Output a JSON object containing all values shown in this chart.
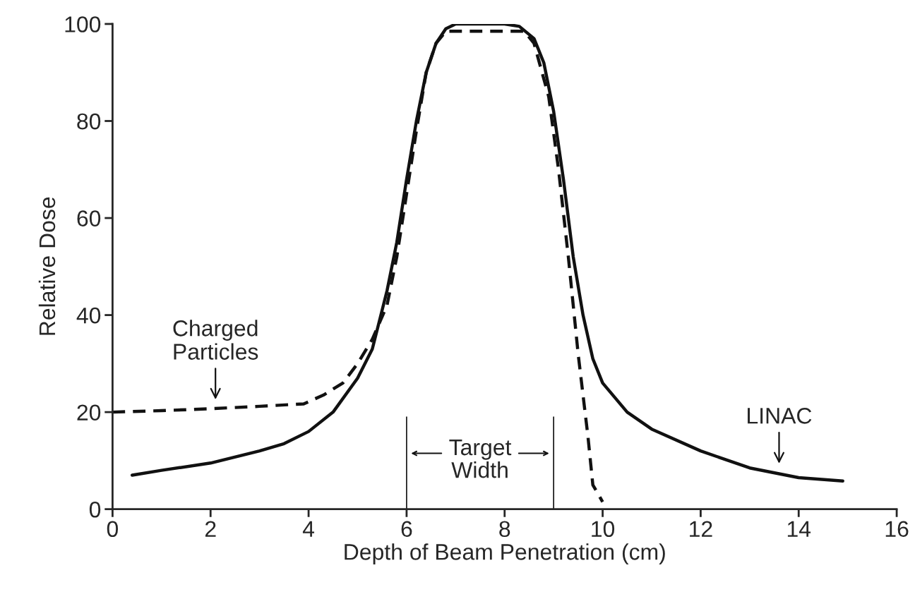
{
  "chart_data": {
    "type": "line",
    "xlabel": "Depth of Beam Penetration (cm)",
    "ylabel": "Relative Dose",
    "xlim": [
      0,
      16
    ],
    "ylim": [
      0,
      100
    ],
    "xticks": [
      0,
      2,
      4,
      6,
      8,
      10,
      12,
      14,
      16
    ],
    "yticks": [
      0,
      20,
      40,
      60,
      80,
      100
    ],
    "grid": false,
    "legend": false,
    "marker": "none",
    "series": [
      {
        "color": "#111111",
        "line_style": "solid",
        "x": [
          0.4,
          1,
          2,
          3,
          3.5,
          4,
          4.5,
          5,
          5.3,
          5.6,
          5.8,
          6,
          6.2,
          6.4,
          6.6,
          6.8,
          7,
          8,
          8.3,
          8.6,
          8.8,
          9,
          9.2,
          9.4,
          9.6,
          9.8,
          10,
          10.5,
          11,
          12,
          13,
          14,
          14.9
        ],
        "values": [
          7,
          8,
          9.5,
          12,
          13.5,
          16,
          20,
          27,
          33,
          45,
          55,
          68,
          80,
          90,
          96,
          99,
          100,
          100,
          99.5,
          97,
          92,
          82,
          68,
          52,
          40,
          31,
          26,
          20,
          16.5,
          12,
          8.5,
          6.5,
          5.8
        ]
      },
      {
        "color": "#111111",
        "line_style": "dashed",
        "x": [
          0,
          1,
          2,
          3,
          3.9,
          4.3,
          4.7,
          5.0,
          5.3,
          5.6,
          5.8,
          6.0,
          6.2,
          6.4,
          6.6,
          6.8,
          8.4,
          8.6,
          8.9,
          9.1,
          9.3,
          9.5,
          9.7,
          9.8,
          10
        ],
        "values": [
          20,
          20.3,
          20.7,
          21.2,
          21.7,
          23.5,
          26,
          30,
          35,
          42,
          52,
          65,
          78,
          90,
          96,
          98.5,
          98.5,
          96,
          85,
          70,
          52,
          32,
          15,
          5,
          1.5
        ]
      }
    ],
    "ref_lines": [
      {
        "axis": "x",
        "value": 6,
        "color": "#111111"
      },
      {
        "axis": "x",
        "value": 9,
        "color": "#111111"
      }
    ],
    "annotations": [
      {
        "text": "Charged\nParticles",
        "x": 2.1,
        "y": 20.7
      },
      {
        "text": "LINAC",
        "x": 13.6,
        "y": 7.5
      },
      "Target\nWidth"
    ]
  }
}
